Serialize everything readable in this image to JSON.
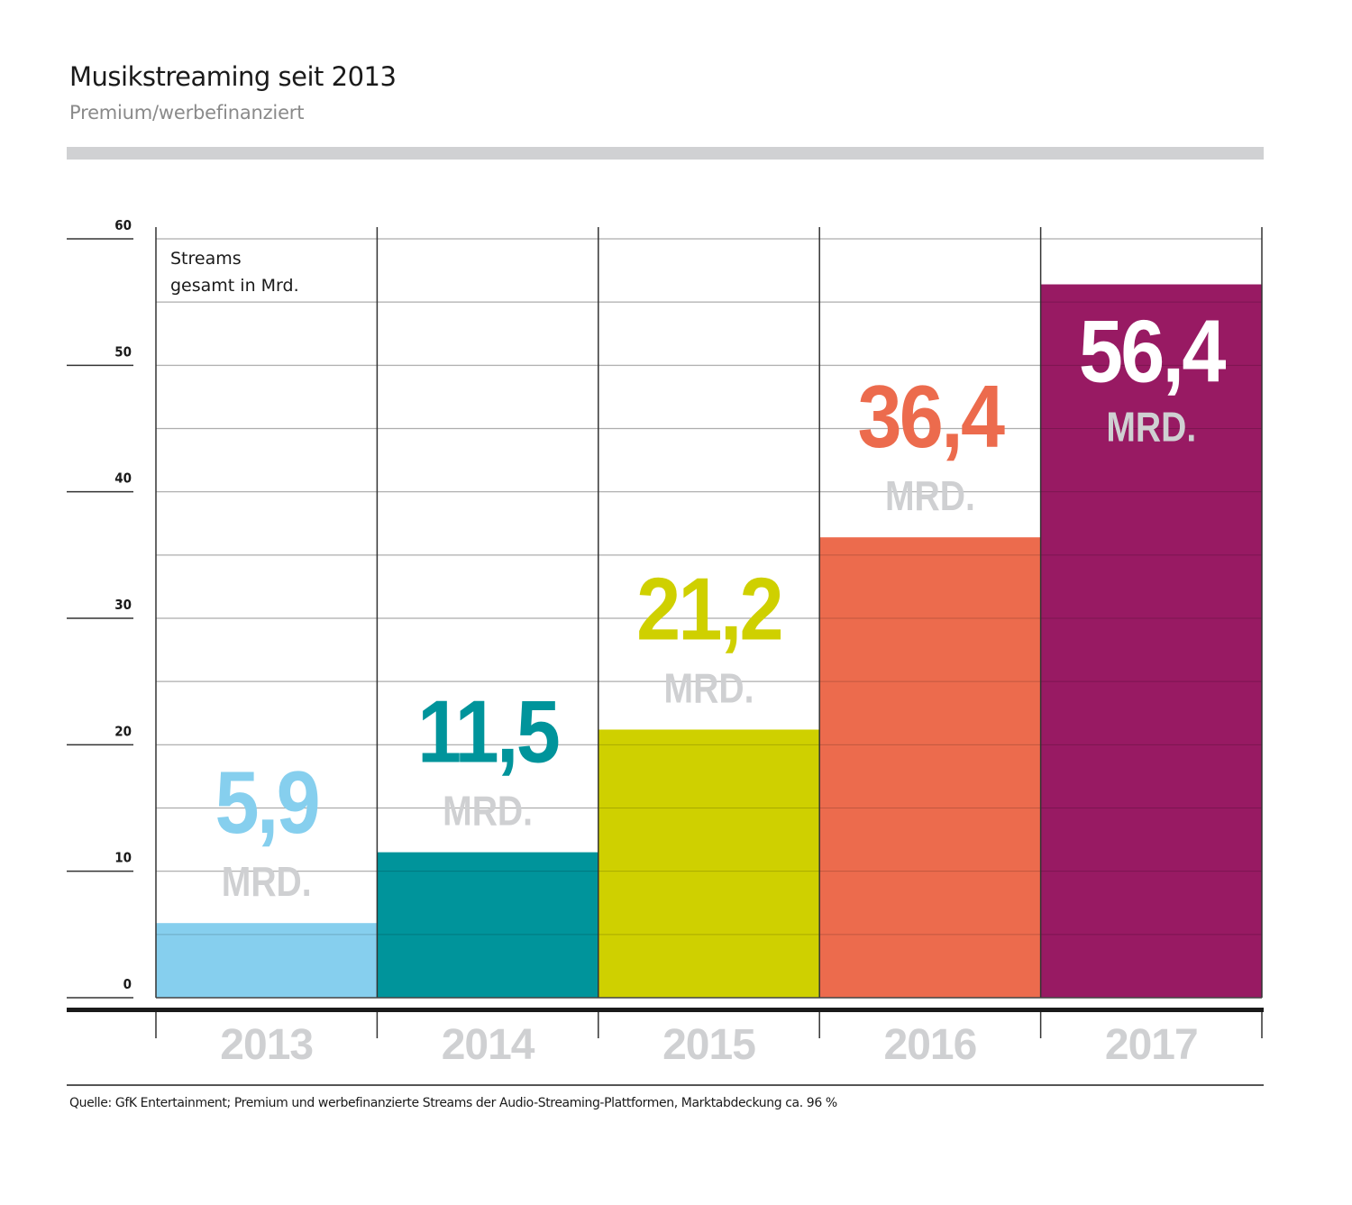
{
  "header": {
    "title": "Musikstreaming seit 2013",
    "subtitle": "Premium/werbefinanziert"
  },
  "footer": {
    "source": "Quelle: GfK Entertainment; Premium und werbefinanzierte Streams der Audio-Streaming-Plattformen, Marktabdeckung ca. 96 %"
  },
  "chart_data": {
    "type": "bar",
    "title": "Musikstreaming seit 2013",
    "subtitle": "Premium/werbefinanziert",
    "xlabel": "",
    "ylabel": "Streams gesamt in Mrd.",
    "ylabel_lines": [
      "Streams",
      "gesamt in Mrd."
    ],
    "ylim": [
      0,
      60
    ],
    "yticks": [
      0,
      10,
      20,
      30,
      40,
      50,
      60
    ],
    "grid_step": 5,
    "grid": true,
    "categories": [
      "2013",
      "2014",
      "2015",
      "2016",
      "2017"
    ],
    "values": [
      5.9,
      11.5,
      21.2,
      36.4,
      56.4
    ],
    "value_labels": [
      "5,9",
      "11,5",
      "21,2",
      "36,4",
      "56,4"
    ],
    "unit_label": "MRD.",
    "colors": [
      "#86cfee",
      "#00949b",
      "#cfd000",
      "#ec6b4d",
      "#981a63"
    ],
    "label_colors": [
      "#86cfee",
      "#00949b",
      "#cfd000",
      "#ec6b4d",
      "#ffffff"
    ],
    "unit_color": "#cfd0d2",
    "category_label_color": "#cfd0d2"
  }
}
